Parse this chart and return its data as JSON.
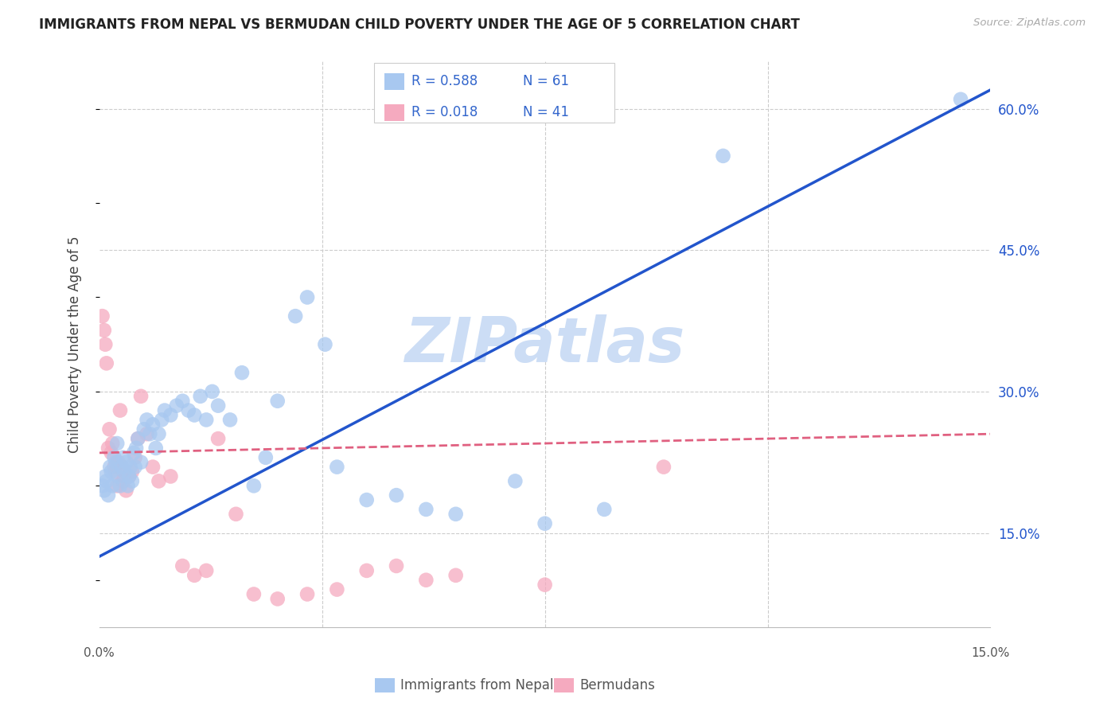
{
  "title": "IMMIGRANTS FROM NEPAL VS BERMUDAN CHILD POVERTY UNDER THE AGE OF 5 CORRELATION CHART",
  "source": "Source: ZipAtlas.com",
  "ylabel": "Child Poverty Under the Age of 5",
  "right_yticks": [
    15.0,
    30.0,
    45.0,
    60.0
  ],
  "xmin": 0.0,
  "xmax": 15.0,
  "ymin": 5.0,
  "ymax": 65.0,
  "blue_R": 0.588,
  "blue_N": 61,
  "pink_R": 0.018,
  "pink_N": 41,
  "blue_color": "#A8C8F0",
  "pink_color": "#F5AABF",
  "blue_line_color": "#2255CC",
  "pink_line_color": "#E06080",
  "legend_r_n_color": "#3366CC",
  "watermark_color": "#CCDDF5",
  "watermark": "ZIPatlas",
  "legend_label_blue": "Immigrants from Nepal",
  "legend_label_pink": "Bermudans",
  "blue_line_y0": 12.5,
  "blue_line_y1": 62.0,
  "pink_line_y0": 23.5,
  "pink_line_y1": 25.5,
  "blue_scatter_x": [
    0.05,
    0.08,
    0.1,
    0.12,
    0.15,
    0.18,
    0.2,
    0.22,
    0.25,
    0.28,
    0.3,
    0.32,
    0.35,
    0.38,
    0.4,
    0.42,
    0.45,
    0.48,
    0.5,
    0.52,
    0.55,
    0.58,
    0.6,
    0.62,
    0.65,
    0.7,
    0.75,
    0.8,
    0.85,
    0.9,
    0.95,
    1.0,
    1.05,
    1.1,
    1.2,
    1.3,
    1.4,
    1.5,
    1.6,
    1.7,
    1.8,
    1.9,
    2.0,
    2.2,
    2.4,
    2.6,
    2.8,
    3.0,
    3.3,
    3.5,
    3.8,
    4.0,
    4.5,
    5.0,
    5.5,
    6.0,
    7.0,
    7.5,
    8.5,
    10.5,
    14.5
  ],
  "blue_scatter_y": [
    20.0,
    19.5,
    21.0,
    20.5,
    19.0,
    22.0,
    21.5,
    20.0,
    23.0,
    22.5,
    24.5,
    21.0,
    20.0,
    22.0,
    23.0,
    21.5,
    22.5,
    20.0,
    21.0,
    22.0,
    20.5,
    23.5,
    22.0,
    24.0,
    25.0,
    22.5,
    26.0,
    27.0,
    25.5,
    26.5,
    24.0,
    25.5,
    27.0,
    28.0,
    27.5,
    28.5,
    29.0,
    28.0,
    27.5,
    29.5,
    27.0,
    30.0,
    28.5,
    27.0,
    32.0,
    20.0,
    23.0,
    29.0,
    38.0,
    40.0,
    35.0,
    22.0,
    18.5,
    19.0,
    17.5,
    17.0,
    20.5,
    16.0,
    17.5,
    55.0,
    61.0
  ],
  "pink_scatter_x": [
    0.05,
    0.08,
    0.1,
    0.12,
    0.15,
    0.17,
    0.2,
    0.22,
    0.25,
    0.27,
    0.3,
    0.32,
    0.35,
    0.38,
    0.4,
    0.42,
    0.45,
    0.5,
    0.55,
    0.6,
    0.65,
    0.7,
    0.8,
    0.9,
    1.0,
    1.2,
    1.4,
    1.6,
    1.8,
    2.0,
    2.3,
    2.6,
    3.0,
    3.5,
    4.0,
    4.5,
    5.0,
    5.5,
    6.0,
    7.5,
    9.5
  ],
  "pink_scatter_y": [
    38.0,
    36.5,
    35.0,
    33.0,
    24.0,
    26.0,
    23.5,
    24.5,
    22.0,
    21.5,
    20.0,
    22.5,
    28.0,
    22.0,
    20.5,
    21.0,
    19.5,
    21.0,
    21.5,
    23.0,
    25.0,
    29.5,
    25.5,
    22.0,
    20.5,
    21.0,
    11.5,
    10.5,
    11.0,
    25.0,
    17.0,
    8.5,
    8.0,
    8.5,
    9.0,
    11.0,
    11.5,
    10.0,
    10.5,
    9.5,
    22.0
  ]
}
